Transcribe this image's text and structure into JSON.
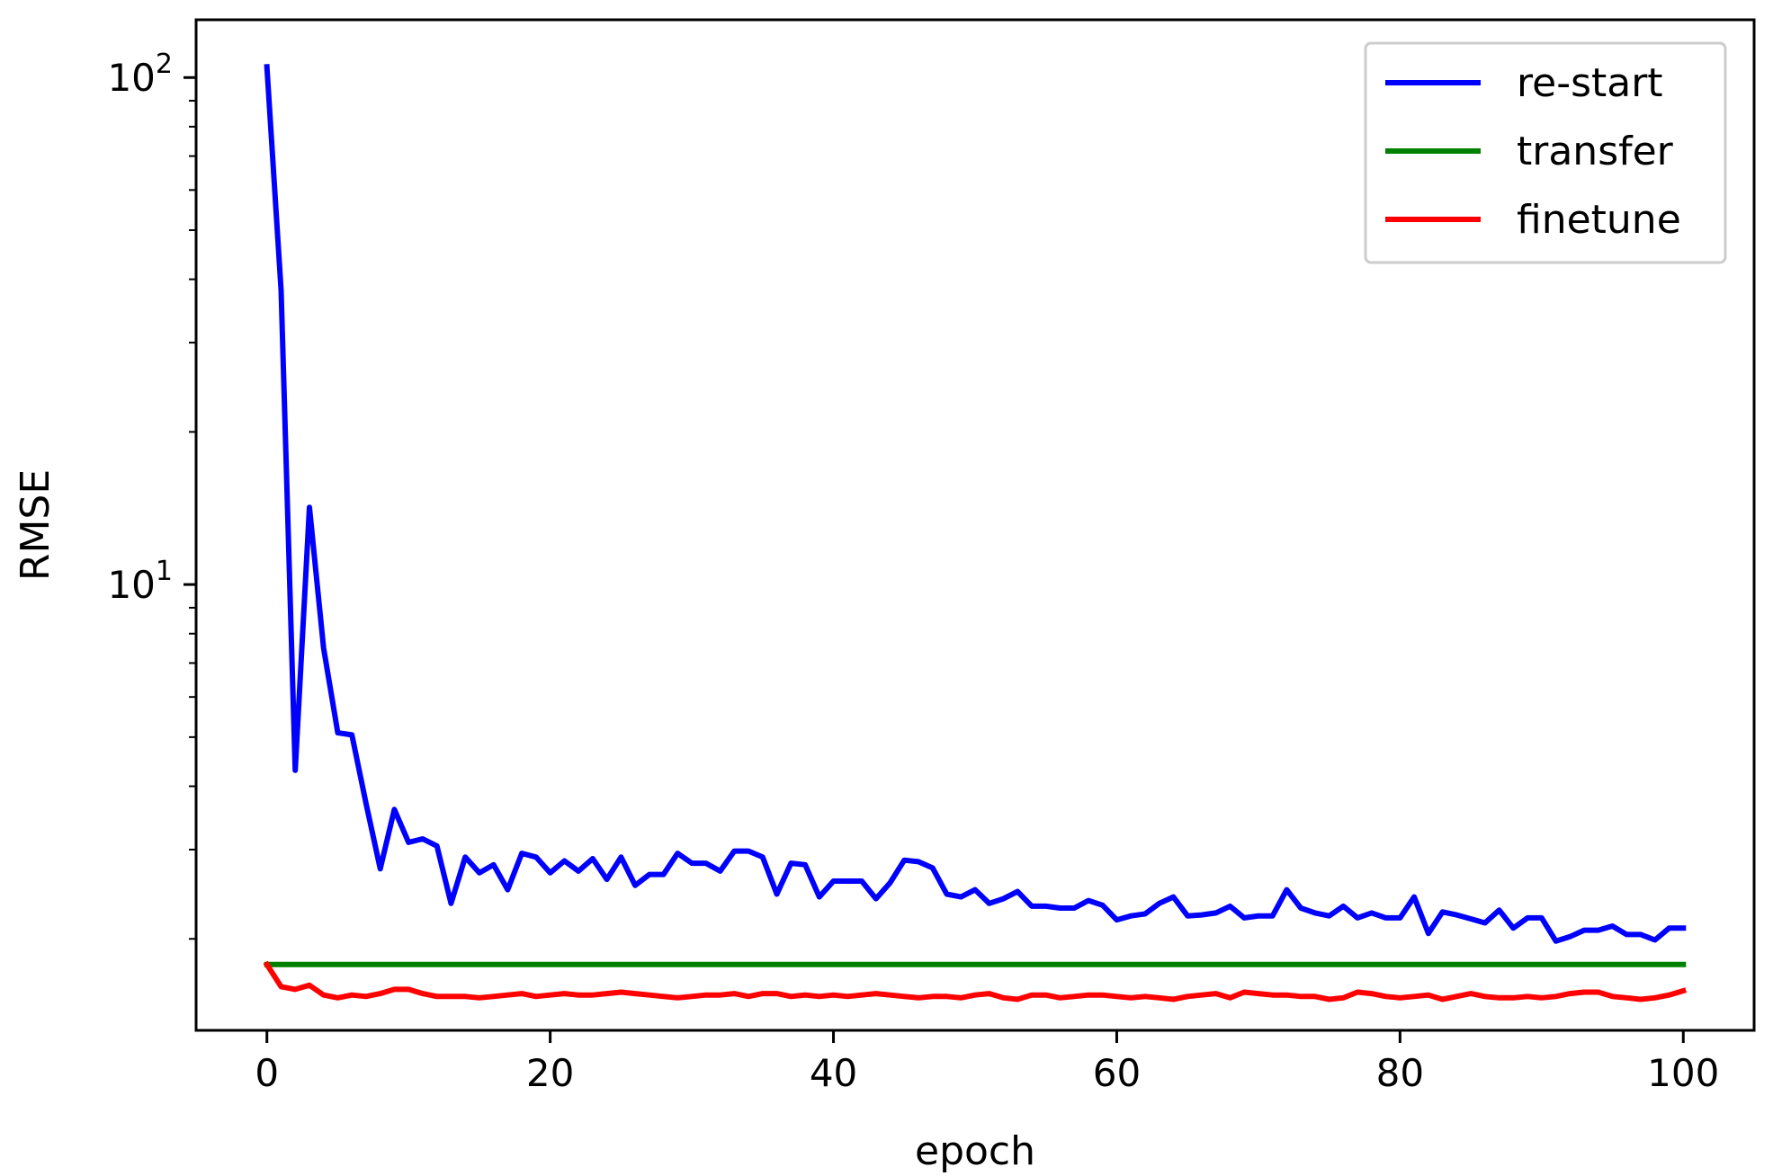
{
  "chart_data": {
    "type": "line",
    "xlabel": "epoch",
    "ylabel": "RMSE",
    "xlim": [
      -5,
      105
    ],
    "ylim": [
      1.32,
      130
    ],
    "yscale": "log",
    "x_ticks": [
      0,
      20,
      40,
      60,
      80,
      100
    ],
    "y_major_ticks": [
      {
        "value": 10,
        "base": "10",
        "exp": "1"
      },
      {
        "value": 100,
        "base": "10",
        "exp": "2"
      }
    ],
    "grid": false,
    "legend_position": "top-right",
    "series": [
      {
        "name": "re-start",
        "color": "#0000ff",
        "x": [
          0,
          1,
          2,
          3,
          4,
          5,
          6,
          7,
          8,
          9,
          10,
          11,
          12,
          13,
          14,
          15,
          16,
          17,
          18,
          19,
          20,
          21,
          22,
          23,
          24,
          25,
          26,
          27,
          28,
          29,
          30,
          31,
          32,
          33,
          34,
          35,
          36,
          37,
          38,
          39,
          40,
          41,
          42,
          43,
          44,
          45,
          46,
          47,
          48,
          49,
          50,
          51,
          52,
          53,
          54,
          55,
          56,
          57,
          58,
          59,
          60,
          61,
          62,
          63,
          64,
          65,
          66,
          67,
          68,
          69,
          70,
          71,
          72,
          73,
          74,
          75,
          76,
          77,
          78,
          79,
          80,
          81,
          82,
          83,
          84,
          85,
          86,
          87,
          88,
          89,
          90,
          91,
          92,
          93,
          94,
          95,
          96,
          97,
          98,
          99,
          100
        ],
        "y": [
          105,
          38,
          4.3,
          14.2,
          7.5,
          5.1,
          5.05,
          3.7,
          2.75,
          3.6,
          3.1,
          3.15,
          3.05,
          2.35,
          2.9,
          2.7,
          2.8,
          2.5,
          2.95,
          2.9,
          2.7,
          2.85,
          2.72,
          2.88,
          2.62,
          2.9,
          2.55,
          2.68,
          2.68,
          2.95,
          2.82,
          2.82,
          2.72,
          2.98,
          2.98,
          2.9,
          2.45,
          2.82,
          2.8,
          2.42,
          2.6,
          2.6,
          2.6,
          2.4,
          2.58,
          2.86,
          2.84,
          2.76,
          2.45,
          2.42,
          2.5,
          2.35,
          2.4,
          2.48,
          2.32,
          2.32,
          2.3,
          2.3,
          2.38,
          2.33,
          2.18,
          2.22,
          2.24,
          2.35,
          2.42,
          2.22,
          2.23,
          2.25,
          2.32,
          2.2,
          2.22,
          2.22,
          2.5,
          2.3,
          2.25,
          2.22,
          2.32,
          2.2,
          2.25,
          2.2,
          2.2,
          2.42,
          2.05,
          2.26,
          2.23,
          2.19,
          2.15,
          2.28,
          2.1,
          2.2,
          2.2,
          1.98,
          2.02,
          2.08,
          2.08,
          2.12,
          2.04,
          2.04,
          1.99,
          2.1,
          2.1
        ]
      },
      {
        "name": "transfer",
        "color": "#008000",
        "x": [
          0,
          100
        ],
        "y": [
          1.78,
          1.78
        ]
      },
      {
        "name": "finetune",
        "color": "#ff0000",
        "x": [
          0,
          1,
          2,
          3,
          4,
          5,
          6,
          7,
          8,
          9,
          10,
          11,
          12,
          13,
          14,
          15,
          16,
          17,
          18,
          19,
          20,
          21,
          22,
          23,
          24,
          25,
          26,
          27,
          28,
          29,
          30,
          31,
          32,
          33,
          34,
          35,
          36,
          37,
          38,
          39,
          40,
          41,
          42,
          43,
          44,
          45,
          46,
          47,
          48,
          49,
          50,
          51,
          52,
          53,
          54,
          55,
          56,
          57,
          58,
          59,
          60,
          61,
          62,
          63,
          64,
          65,
          66,
          67,
          68,
          69,
          70,
          71,
          72,
          73,
          74,
          75,
          76,
          77,
          78,
          79,
          80,
          81,
          82,
          83,
          84,
          85,
          86,
          87,
          88,
          89,
          90,
          91,
          92,
          93,
          94,
          95,
          96,
          97,
          98,
          99,
          100
        ],
        "y": [
          1.78,
          1.61,
          1.59,
          1.62,
          1.55,
          1.53,
          1.55,
          1.54,
          1.56,
          1.59,
          1.59,
          1.56,
          1.54,
          1.54,
          1.54,
          1.53,
          1.54,
          1.55,
          1.56,
          1.54,
          1.55,
          1.56,
          1.55,
          1.55,
          1.56,
          1.57,
          1.56,
          1.55,
          1.54,
          1.53,
          1.54,
          1.55,
          1.55,
          1.56,
          1.54,
          1.56,
          1.56,
          1.54,
          1.55,
          1.54,
          1.55,
          1.54,
          1.55,
          1.56,
          1.55,
          1.54,
          1.53,
          1.54,
          1.54,
          1.53,
          1.55,
          1.56,
          1.53,
          1.52,
          1.55,
          1.55,
          1.53,
          1.54,
          1.55,
          1.55,
          1.54,
          1.53,
          1.54,
          1.53,
          1.52,
          1.54,
          1.55,
          1.56,
          1.53,
          1.57,
          1.56,
          1.55,
          1.55,
          1.54,
          1.54,
          1.52,
          1.53,
          1.57,
          1.56,
          1.54,
          1.53,
          1.54,
          1.55,
          1.52,
          1.54,
          1.56,
          1.54,
          1.53,
          1.53,
          1.54,
          1.53,
          1.54,
          1.56,
          1.57,
          1.57,
          1.54,
          1.53,
          1.52,
          1.53,
          1.55,
          1.58
        ]
      }
    ]
  }
}
